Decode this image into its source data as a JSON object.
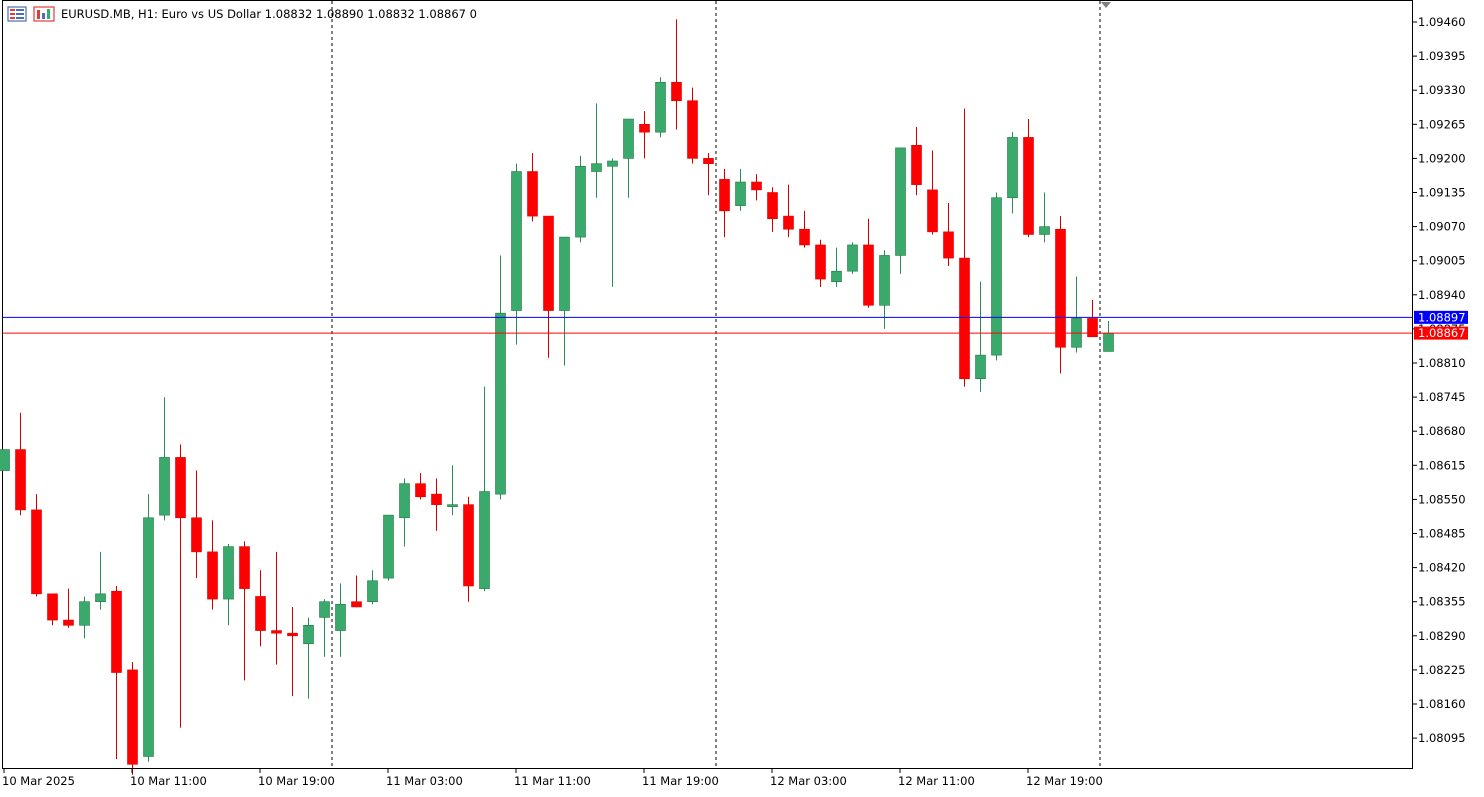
{
  "header": {
    "symbol_line": "EURUSD.MB, H1:  Euro vs US Dollar  1.08832 1.08890 1.08832 1.08867  0",
    "icons": [
      "menu-icon",
      "chart-bars-icon"
    ]
  },
  "colors": {
    "bull": "#3aaa6c",
    "bear": "#ff0000",
    "bid_line": "#ff0000",
    "ask_line": "#0000ff",
    "grid_vertical": "#000000",
    "axis": "#000000"
  },
  "price_tags": {
    "ask": "1.08897",
    "bid": "1.08867"
  },
  "chart_data": {
    "type": "candlestick",
    "symbol": "EURUSD.MB",
    "timeframe": "H1",
    "ylim": [
      1.0797,
      1.0952
    ],
    "y_ticks": [
      "1.09460",
      "1.09395",
      "1.09330",
      "1.09265",
      "1.09200",
      "1.09135",
      "1.09070",
      "1.09005",
      "1.08940",
      "1.08875",
      "1.08810",
      "1.08745",
      "1.08680",
      "1.08615",
      "1.08550",
      "1.08485",
      "1.08420",
      "1.08355",
      "1.08290",
      "1.08225",
      "1.08160",
      "1.08095"
    ],
    "x_labels": [
      {
        "index": 0,
        "label": "10 Mar 2025"
      },
      {
        "index": 8,
        "label": "10 Mar 11:00"
      },
      {
        "index": 16,
        "label": "10 Mar 19:00"
      },
      {
        "index": 24,
        "label": "11 Mar 03:00"
      },
      {
        "index": 32,
        "label": "11 Mar 11:00"
      },
      {
        "index": 40,
        "label": "11 Mar 19:00"
      },
      {
        "index": 48,
        "label": "12 Mar 03:00"
      },
      {
        "index": 56,
        "label": "12 Mar 11:00"
      },
      {
        "index": 64,
        "label": "12 Mar 19:00"
      }
    ],
    "day_separators": [
      20.5,
      44.5,
      68.5
    ],
    "bid_price": 1.08867,
    "ask_price": 1.08897,
    "candles": [
      {
        "o": 1.08605,
        "h": 1.08645,
        "l": 1.08605,
        "c": 1.08645
      },
      {
        "o": 1.08645,
        "h": 1.08715,
        "l": 1.0852,
        "c": 1.0853
      },
      {
        "o": 1.0853,
        "h": 1.0856,
        "l": 1.08365,
        "c": 1.0837
      },
      {
        "o": 1.0837,
        "h": 1.0837,
        "l": 1.0831,
        "c": 1.0832
      },
      {
        "o": 1.0832,
        "h": 1.0838,
        "l": 1.08305,
        "c": 1.0831
      },
      {
        "o": 1.0831,
        "h": 1.08365,
        "l": 1.08285,
        "c": 1.08355
      },
      {
        "o": 1.08355,
        "h": 1.0845,
        "l": 1.0834,
        "c": 1.0837
      },
      {
        "o": 1.08375,
        "h": 1.08385,
        "l": 1.08055,
        "c": 1.0822
      },
      {
        "o": 1.08225,
        "h": 1.0824,
        "l": 1.08025,
        "c": 1.08045
      },
      {
        "o": 1.0806,
        "h": 1.0856,
        "l": 1.0805,
        "c": 1.08515
      },
      {
        "o": 1.0852,
        "h": 1.08745,
        "l": 1.0851,
        "c": 1.0863
      },
      {
        "o": 1.0863,
        "h": 1.08655,
        "l": 1.08115,
        "c": 1.08515
      },
      {
        "o": 1.08515,
        "h": 1.08605,
        "l": 1.084,
        "c": 1.0845
      },
      {
        "o": 1.0845,
        "h": 1.0851,
        "l": 1.0834,
        "c": 1.0836
      },
      {
        "o": 1.0836,
        "h": 1.08465,
        "l": 1.0831,
        "c": 1.0846
      },
      {
        "o": 1.0846,
        "h": 1.0847,
        "l": 1.08205,
        "c": 1.0838
      },
      {
        "o": 1.08365,
        "h": 1.08415,
        "l": 1.0827,
        "c": 1.083
      },
      {
        "o": 1.083,
        "h": 1.0845,
        "l": 1.08235,
        "c": 1.08295
      },
      {
        "o": 1.08295,
        "h": 1.08345,
        "l": 1.08175,
        "c": 1.0829
      },
      {
        "o": 1.08275,
        "h": 1.08325,
        "l": 1.0817,
        "c": 1.0831
      },
      {
        "o": 1.08325,
        "h": 1.0836,
        "l": 1.0825,
        "c": 1.08355
      },
      {
        "o": 1.083,
        "h": 1.0839,
        "l": 1.0825,
        "c": 1.0835
      },
      {
        "o": 1.08355,
        "h": 1.08405,
        "l": 1.08345,
        "c": 1.08345
      },
      {
        "o": 1.08355,
        "h": 1.08415,
        "l": 1.0835,
        "c": 1.08395
      },
      {
        "o": 1.084,
        "h": 1.0852,
        "l": 1.08395,
        "c": 1.0852
      },
      {
        "o": 1.08515,
        "h": 1.0859,
        "l": 1.0846,
        "c": 1.0858
      },
      {
        "o": 1.0858,
        "h": 1.086,
        "l": 1.0855,
        "c": 1.08555
      },
      {
        "o": 1.0856,
        "h": 1.0859,
        "l": 1.0849,
        "c": 1.0854
      },
      {
        "o": 1.0854,
        "h": 1.08615,
        "l": 1.0852,
        "c": 1.0854
      },
      {
        "o": 1.0854,
        "h": 1.08555,
        "l": 1.08355,
        "c": 1.08385
      },
      {
        "o": 1.0838,
        "h": 1.08765,
        "l": 1.08375,
        "c": 1.08565
      },
      {
        "o": 1.0856,
        "h": 1.09015,
        "l": 1.0855,
        "c": 1.08905
      },
      {
        "o": 1.0891,
        "h": 1.0919,
        "l": 1.08845,
        "c": 1.09175
      },
      {
        "o": 1.09175,
        "h": 1.0921,
        "l": 1.0908,
        "c": 1.0909
      },
      {
        "o": 1.0909,
        "h": 1.0908,
        "l": 1.0882,
        "c": 1.0891
      },
      {
        "o": 1.0891,
        "h": 1.0905,
        "l": 1.08805,
        "c": 1.0905
      },
      {
        "o": 1.0905,
        "h": 1.09205,
        "l": 1.0904,
        "c": 1.09185
      },
      {
        "o": 1.09175,
        "h": 1.09305,
        "l": 1.09125,
        "c": 1.0919
      },
      {
        "o": 1.09185,
        "h": 1.092,
        "l": 1.08955,
        "c": 1.09195
      },
      {
        "o": 1.092,
        "h": 1.09275,
        "l": 1.09125,
        "c": 1.09275
      },
      {
        "o": 1.09265,
        "h": 1.0929,
        "l": 1.092,
        "c": 1.0925
      },
      {
        "o": 1.0925,
        "h": 1.09355,
        "l": 1.0924,
        "c": 1.09345
      },
      {
        "o": 1.09345,
        "h": 1.09465,
        "l": 1.09255,
        "c": 1.0931
      },
      {
        "o": 1.0931,
        "h": 1.09335,
        "l": 1.0919,
        "c": 1.092
      },
      {
        "o": 1.092,
        "h": 1.0921,
        "l": 1.0913,
        "c": 1.0919
      },
      {
        "o": 1.0916,
        "h": 1.0918,
        "l": 1.0905,
        "c": 1.091
      },
      {
        "o": 1.0911,
        "h": 1.0918,
        "l": 1.091,
        "c": 1.09155
      },
      {
        "o": 1.09155,
        "h": 1.0917,
        "l": 1.0912,
        "c": 1.0914
      },
      {
        "o": 1.09135,
        "h": 1.09145,
        "l": 1.0906,
        "c": 1.09085
      },
      {
        "o": 1.0909,
        "h": 1.0915,
        "l": 1.0905,
        "c": 1.09065
      },
      {
        "o": 1.09065,
        "h": 1.091,
        "l": 1.0903,
        "c": 1.09035
      },
      {
        "o": 1.09035,
        "h": 1.09045,
        "l": 1.08955,
        "c": 1.0897
      },
      {
        "o": 1.08965,
        "h": 1.0903,
        "l": 1.08955,
        "c": 1.08985
      },
      {
        "o": 1.08985,
        "h": 1.0904,
        "l": 1.0898,
        "c": 1.09035
      },
      {
        "o": 1.09035,
        "h": 1.09085,
        "l": 1.08915,
        "c": 1.0892
      },
      {
        "o": 1.0892,
        "h": 1.09025,
        "l": 1.08875,
        "c": 1.09015
      },
      {
        "o": 1.09015,
        "h": 1.0922,
        "l": 1.0898,
        "c": 1.0922
      },
      {
        "o": 1.09225,
        "h": 1.0926,
        "l": 1.0913,
        "c": 1.0915
      },
      {
        "o": 1.0914,
        "h": 1.09215,
        "l": 1.09055,
        "c": 1.0906
      },
      {
        "o": 1.0906,
        "h": 1.09115,
        "l": 1.08995,
        "c": 1.0901
      },
      {
        "o": 1.0901,
        "h": 1.09295,
        "l": 1.08765,
        "c": 1.0878
      },
      {
        "o": 1.0878,
        "h": 1.08965,
        "l": 1.08755,
        "c": 1.08825
      },
      {
        "o": 1.08825,
        "h": 1.09135,
        "l": 1.08815,
        "c": 1.09125
      },
      {
        "o": 1.09125,
        "h": 1.0925,
        "l": 1.09095,
        "c": 1.0924
      },
      {
        "o": 1.0924,
        "h": 1.09275,
        "l": 1.0905,
        "c": 1.09055
      },
      {
        "o": 1.09055,
        "h": 1.09135,
        "l": 1.0904,
        "c": 1.0907
      },
      {
        "o": 1.09065,
        "h": 1.0909,
        "l": 1.0879,
        "c": 1.0884
      },
      {
        "o": 1.0884,
        "h": 1.08975,
        "l": 1.0883,
        "c": 1.08895
      },
      {
        "o": 1.08895,
        "h": 1.0893,
        "l": 1.08865,
        "c": 1.0886
      },
      {
        "o": 1.08832,
        "h": 1.0889,
        "l": 1.08832,
        "c": 1.08867
      }
    ]
  }
}
